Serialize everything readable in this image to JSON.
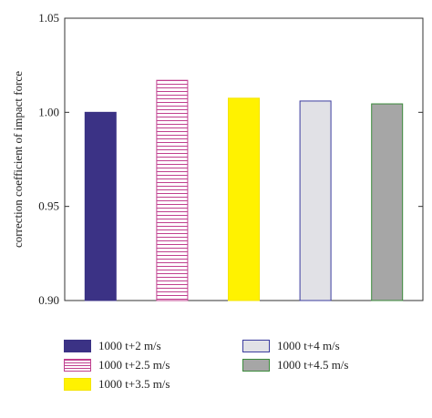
{
  "chart_data": {
    "type": "bar",
    "categories": [
      "1000 t+2 m/s",
      "1000 t+2.5 m/s",
      "1000 t+3.5 m/s",
      "1000 t+4 m/s",
      "1000 t+4.5 m/s"
    ],
    "values": [
      1.0,
      1.017,
      1.0075,
      1.006,
      1.0045
    ],
    "title": "",
    "xlabel": "",
    "ylabel": "correction coefficient of impact force",
    "ylim": [
      0.9,
      1.05
    ],
    "yticks": [
      "0.90",
      "0.95",
      "1.00",
      "1.05"
    ],
    "grid": false,
    "legend_position": "bottom",
    "series_styles": [
      {
        "fill": "#3b3285",
        "stroke": "#3b3285",
        "pattern": "solid"
      },
      {
        "fill": "#ffffff",
        "stroke": "#c0408f",
        "pattern": "horizontal-stripes",
        "stripe_color": "#c0408f"
      },
      {
        "fill": "#fff200",
        "stroke": "#f4e400",
        "pattern": "solid"
      },
      {
        "fill": "#e1e1e6",
        "stroke": "#3b3c9e",
        "pattern": "solid"
      },
      {
        "fill": "#a6a6a6",
        "stroke": "#3b8a3b",
        "pattern": "solid"
      }
    ]
  }
}
